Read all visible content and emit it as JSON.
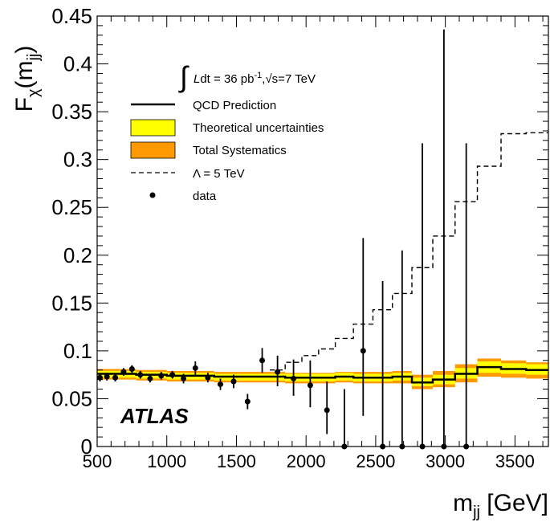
{
  "chart_data": {
    "type": "line",
    "xlim": [
      500,
      3740
    ],
    "ylim": [
      0,
      0.45
    ],
    "x_ticks": [
      "500",
      "1000",
      "1500",
      "2000",
      "2500",
      "3000",
      "3500"
    ],
    "x_tick_values": [
      500,
      1000,
      1500,
      2000,
      2500,
      3000,
      3500
    ],
    "y_ticks": [
      "0",
      "0.05",
      "0.1",
      "0.15",
      "0.2",
      "0.25",
      "0.3",
      "0.35",
      "0.4",
      "0.45"
    ],
    "y_tick_values": [
      0,
      0.05,
      0.1,
      0.15,
      0.2,
      0.25,
      0.3,
      0.35,
      0.4,
      0.45
    ],
    "ylabel": "Fχ(mjj)",
    "xlabel": "mjj [GeV]",
    "grid": false,
    "legend_position": "top-left",
    "luminosity_label": "Ldt = 36 pb-1,√s=7 TeV",
    "experiment_label": "ATLAS",
    "legend": [
      {
        "label": "QCD Prediction",
        "style": "solid-line",
        "color": "#000000"
      },
      {
        "label": "Theoretical uncertainties",
        "style": "box",
        "color": "#ffff00"
      },
      {
        "label": "Total Systematics",
        "style": "box",
        "color": "#ff9900"
      },
      {
        "label": "Λ = 5 TeV",
        "style": "dashed-line",
        "color": "#000000"
      },
      {
        "label": "data",
        "style": "marker",
        "color": "#000000"
      }
    ],
    "colors": {
      "theory_band": "#ffff00",
      "systematics_band": "#ff9900",
      "qcd_line": "#000000",
      "lambda_line": "#000000",
      "data": "#000000"
    },
    "qcd_bins": [
      {
        "lo": 500,
        "hi": 540,
        "value": 0.076,
        "total_lo": 0.07,
        "total_hi": 0.081,
        "theory_lo": 0.072,
        "theory_hi": 0.079
      },
      {
        "lo": 540,
        "hi": 600,
        "value": 0.076,
        "total_lo": 0.07,
        "total_hi": 0.081,
        "theory_lo": 0.072,
        "theory_hi": 0.079
      },
      {
        "lo": 600,
        "hi": 660,
        "value": 0.076,
        "total_lo": 0.07,
        "total_hi": 0.081,
        "theory_lo": 0.072,
        "theory_hi": 0.079
      },
      {
        "lo": 660,
        "hi": 720,
        "value": 0.076,
        "total_lo": 0.07,
        "total_hi": 0.081,
        "theory_lo": 0.072,
        "theory_hi": 0.079
      },
      {
        "lo": 720,
        "hi": 780,
        "value": 0.076,
        "total_lo": 0.07,
        "total_hi": 0.081,
        "theory_lo": 0.072,
        "theory_hi": 0.079
      },
      {
        "lo": 780,
        "hi": 840,
        "value": 0.075,
        "total_lo": 0.069,
        "total_hi": 0.08,
        "theory_lo": 0.071,
        "theory_hi": 0.078
      },
      {
        "lo": 840,
        "hi": 920,
        "value": 0.075,
        "total_lo": 0.069,
        "total_hi": 0.08,
        "theory_lo": 0.071,
        "theory_hi": 0.078
      },
      {
        "lo": 920,
        "hi": 1000,
        "value": 0.075,
        "total_lo": 0.069,
        "total_hi": 0.08,
        "theory_lo": 0.071,
        "theory_hi": 0.078
      },
      {
        "lo": 1000,
        "hi": 1080,
        "value": 0.074,
        "total_lo": 0.068,
        "total_hi": 0.079,
        "theory_lo": 0.07,
        "theory_hi": 0.077
      },
      {
        "lo": 1080,
        "hi": 1160,
        "value": 0.074,
        "total_lo": 0.068,
        "total_hi": 0.079,
        "theory_lo": 0.07,
        "theory_hi": 0.077
      },
      {
        "lo": 1160,
        "hi": 1250,
        "value": 0.074,
        "total_lo": 0.068,
        "total_hi": 0.079,
        "theory_lo": 0.07,
        "theory_hi": 0.077
      },
      {
        "lo": 1250,
        "hi": 1340,
        "value": 0.074,
        "total_lo": 0.068,
        "total_hi": 0.079,
        "theory_lo": 0.07,
        "theory_hi": 0.077
      },
      {
        "lo": 1340,
        "hi": 1430,
        "value": 0.073,
        "total_lo": 0.067,
        "total_hi": 0.078,
        "theory_lo": 0.069,
        "theory_hi": 0.076
      },
      {
        "lo": 1430,
        "hi": 1530,
        "value": 0.073,
        "total_lo": 0.067,
        "total_hi": 0.078,
        "theory_lo": 0.069,
        "theory_hi": 0.076
      },
      {
        "lo": 1530,
        "hi": 1630,
        "value": 0.073,
        "total_lo": 0.067,
        "total_hi": 0.078,
        "theory_lo": 0.069,
        "theory_hi": 0.076
      },
      {
        "lo": 1630,
        "hi": 1740,
        "value": 0.073,
        "total_lo": 0.067,
        "total_hi": 0.078,
        "theory_lo": 0.069,
        "theory_hi": 0.076
      },
      {
        "lo": 1740,
        "hi": 1850,
        "value": 0.073,
        "total_lo": 0.067,
        "total_hi": 0.078,
        "theory_lo": 0.069,
        "theory_hi": 0.076
      },
      {
        "lo": 1850,
        "hi": 1970,
        "value": 0.072,
        "total_lo": 0.066,
        "total_hi": 0.077,
        "theory_lo": 0.068,
        "theory_hi": 0.076
      },
      {
        "lo": 1970,
        "hi": 2090,
        "value": 0.072,
        "total_lo": 0.066,
        "total_hi": 0.077,
        "theory_lo": 0.068,
        "theory_hi": 0.076
      },
      {
        "lo": 2090,
        "hi": 2210,
        "value": 0.072,
        "total_lo": 0.066,
        "total_hi": 0.077,
        "theory_lo": 0.068,
        "theory_hi": 0.076
      },
      {
        "lo": 2210,
        "hi": 2340,
        "value": 0.073,
        "total_lo": 0.067,
        "total_hi": 0.078,
        "theory_lo": 0.069,
        "theory_hi": 0.077
      },
      {
        "lo": 2340,
        "hi": 2480,
        "value": 0.072,
        "total_lo": 0.066,
        "total_hi": 0.078,
        "theory_lo": 0.068,
        "theory_hi": 0.076
      },
      {
        "lo": 2480,
        "hi": 2620,
        "value": 0.072,
        "total_lo": 0.066,
        "total_hi": 0.078,
        "theory_lo": 0.068,
        "theory_hi": 0.076
      },
      {
        "lo": 2620,
        "hi": 2760,
        "value": 0.073,
        "total_lo": 0.066,
        "total_hi": 0.079,
        "theory_lo": 0.069,
        "theory_hi": 0.077
      },
      {
        "lo": 2760,
        "hi": 2910,
        "value": 0.067,
        "total_lo": 0.06,
        "total_hi": 0.075,
        "theory_lo": 0.063,
        "theory_hi": 0.072
      },
      {
        "lo": 2910,
        "hi": 3070,
        "value": 0.07,
        "total_lo": 0.062,
        "total_hi": 0.079,
        "theory_lo": 0.065,
        "theory_hi": 0.075
      },
      {
        "lo": 3070,
        "hi": 3230,
        "value": 0.076,
        "total_lo": 0.067,
        "total_hi": 0.086,
        "theory_lo": 0.071,
        "theory_hi": 0.082
      },
      {
        "lo": 3230,
        "hi": 3400,
        "value": 0.083,
        "total_lo": 0.073,
        "total_hi": 0.092,
        "theory_lo": 0.077,
        "theory_hi": 0.089
      },
      {
        "lo": 3400,
        "hi": 3580,
        "value": 0.081,
        "total_lo": 0.072,
        "total_hi": 0.09,
        "theory_lo": 0.076,
        "theory_hi": 0.087
      },
      {
        "lo": 3580,
        "hi": 3740,
        "value": 0.08,
        "total_lo": 0.071,
        "total_hi": 0.088,
        "theory_lo": 0.075,
        "theory_hi": 0.086
      }
    ],
    "lambda_steps": [
      {
        "lo": 1740,
        "hi": 1850,
        "value": 0.08
      },
      {
        "lo": 1850,
        "hi": 1970,
        "value": 0.088
      },
      {
        "lo": 1970,
        "hi": 2090,
        "value": 0.095
      },
      {
        "lo": 2090,
        "hi": 2210,
        "value": 0.102
      },
      {
        "lo": 2210,
        "hi": 2340,
        "value": 0.113
      },
      {
        "lo": 2340,
        "hi": 2480,
        "value": 0.128
      },
      {
        "lo": 2480,
        "hi": 2620,
        "value": 0.143
      },
      {
        "lo": 2620,
        "hi": 2760,
        "value": 0.16
      },
      {
        "lo": 2760,
        "hi": 2910,
        "value": 0.187
      },
      {
        "lo": 2910,
        "hi": 3070,
        "value": 0.22
      },
      {
        "lo": 3070,
        "hi": 3230,
        "value": 0.256
      },
      {
        "lo": 3230,
        "hi": 3400,
        "value": 0.293
      },
      {
        "lo": 3400,
        "hi": 3580,
        "value": 0.327
      },
      {
        "lo": 3580,
        "hi": 3740,
        "value": 0.328
      }
    ],
    "data_points": [
      {
        "x": 520,
        "y": 0.072,
        "err_lo": 0.004,
        "err_hi": 0.004
      },
      {
        "x": 570,
        "y": 0.073,
        "err_lo": 0.004,
        "err_hi": 0.004
      },
      {
        "x": 630,
        "y": 0.072,
        "err_lo": 0.004,
        "err_hi": 0.004
      },
      {
        "x": 690,
        "y": 0.078,
        "err_lo": 0.004,
        "err_hi": 0.004
      },
      {
        "x": 750,
        "y": 0.081,
        "err_lo": 0.004,
        "err_hi": 0.004
      },
      {
        "x": 810,
        "y": 0.075,
        "err_lo": 0.004,
        "err_hi": 0.004
      },
      {
        "x": 880,
        "y": 0.071,
        "err_lo": 0.004,
        "err_hi": 0.004
      },
      {
        "x": 960,
        "y": 0.074,
        "err_lo": 0.004,
        "err_hi": 0.004
      },
      {
        "x": 1040,
        "y": 0.075,
        "err_lo": 0.004,
        "err_hi": 0.004
      },
      {
        "x": 1120,
        "y": 0.071,
        "err_lo": 0.005,
        "err_hi": 0.005
      },
      {
        "x": 1205,
        "y": 0.082,
        "err_lo": 0.007,
        "err_hi": 0.007
      },
      {
        "x": 1295,
        "y": 0.072,
        "err_lo": 0.005,
        "err_hi": 0.005
      },
      {
        "x": 1385,
        "y": 0.065,
        "err_lo": 0.006,
        "err_hi": 0.006
      },
      {
        "x": 1480,
        "y": 0.068,
        "err_lo": 0.007,
        "err_hi": 0.007
      },
      {
        "x": 1580,
        "y": 0.047,
        "err_lo": 0.008,
        "err_hi": 0.008
      },
      {
        "x": 1685,
        "y": 0.09,
        "err_lo": 0.013,
        "err_hi": 0.013
      },
      {
        "x": 1795,
        "y": 0.078,
        "err_lo": 0.015,
        "err_hi": 0.017
      },
      {
        "x": 1910,
        "y": 0.071,
        "err_lo": 0.018,
        "err_hi": 0.02
      },
      {
        "x": 2030,
        "y": 0.064,
        "err_lo": 0.023,
        "err_hi": 0.026
      },
      {
        "x": 2150,
        "y": 0.038,
        "err_lo": 0.025,
        "err_hi": 0.03
      },
      {
        "x": 2275,
        "y": 0.0,
        "err_lo": 0.0,
        "err_hi": 0.06
      },
      {
        "x": 2410,
        "y": 0.1,
        "err_lo": 0.068,
        "err_hi": 0.118
      },
      {
        "x": 2550,
        "y": 0.0,
        "err_lo": 0.0,
        "err_hi": 0.173
      },
      {
        "x": 2690,
        "y": 0.0,
        "err_lo": 0.0,
        "err_hi": 0.205
      },
      {
        "x": 2835,
        "y": 0.0,
        "err_lo": 0.0,
        "err_hi": 0.317
      },
      {
        "x": 2990,
        "y": 0.0,
        "err_lo": 0.0,
        "err_hi": 0.436
      },
      {
        "x": 3150,
        "y": 0.0,
        "err_lo": 0.0,
        "err_hi": 0.317
      }
    ]
  }
}
